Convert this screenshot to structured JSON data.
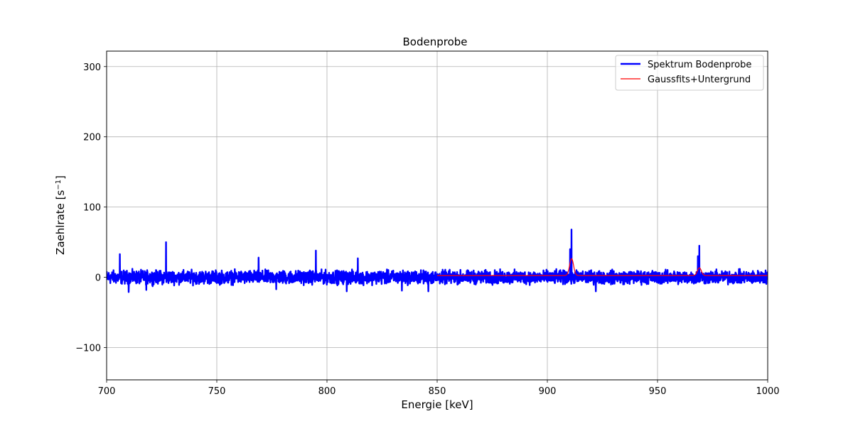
{
  "chart_data": {
    "type": "line",
    "title": "Bodenprobe",
    "xlabel": "Energie [keV]",
    "ylabel": "Zaehlrate [s",
    "ylabel_sup": "−1",
    "ylabel_end": "]",
    "xlim": [
      700,
      1000
    ],
    "ylim": [
      -146,
      322
    ],
    "xticks": [
      700,
      750,
      800,
      850,
      900,
      950,
      1000
    ],
    "xtick_labels": [
      "700",
      "750",
      "800",
      "850",
      "900",
      "950",
      "1000"
    ],
    "yticks": [
      -100,
      0,
      100,
      200,
      300
    ],
    "ytick_labels": [
      "−100",
      "0",
      "100",
      "200",
      "300"
    ],
    "grid": true,
    "legend_position": "top-right",
    "series": [
      {
        "name": "Spektrum Bodenprobe",
        "color": "#0000ff",
        "kind": "noisy-spectrum",
        "x_start": 700,
        "x_end": 1000,
        "baseline": 0,
        "noise_amplitude": 9,
        "spikes": [
          {
            "x": 706,
            "y": 33
          },
          {
            "x": 727,
            "y": 50
          },
          {
            "x": 769,
            "y": 28
          },
          {
            "x": 795,
            "y": 38
          },
          {
            "x": 814,
            "y": 27
          },
          {
            "x": 911,
            "y": 68
          },
          {
            "x": 910.3,
            "y": 40
          },
          {
            "x": 969,
            "y": 45
          },
          {
            "x": 968.3,
            "y": 30
          }
        ],
        "dips": [
          {
            "x": 710,
            "y": -21
          },
          {
            "x": 718,
            "y": -18
          },
          {
            "x": 777,
            "y": -17
          },
          {
            "x": 809,
            "y": -20
          },
          {
            "x": 834,
            "y": -19
          },
          {
            "x": 846,
            "y": -20
          },
          {
            "x": 922,
            "y": -20
          }
        ]
      },
      {
        "name": "Gaussfits+Untergrund",
        "color": "#ff0000",
        "kind": "fit",
        "x_start": 850,
        "x_end": 1000,
        "background": 2.5,
        "peaks": [
          {
            "center": 911,
            "amplitude": 24,
            "sigma": 0.9
          },
          {
            "center": 969,
            "amplitude": 11,
            "sigma": 0.9
          }
        ]
      }
    ]
  }
}
